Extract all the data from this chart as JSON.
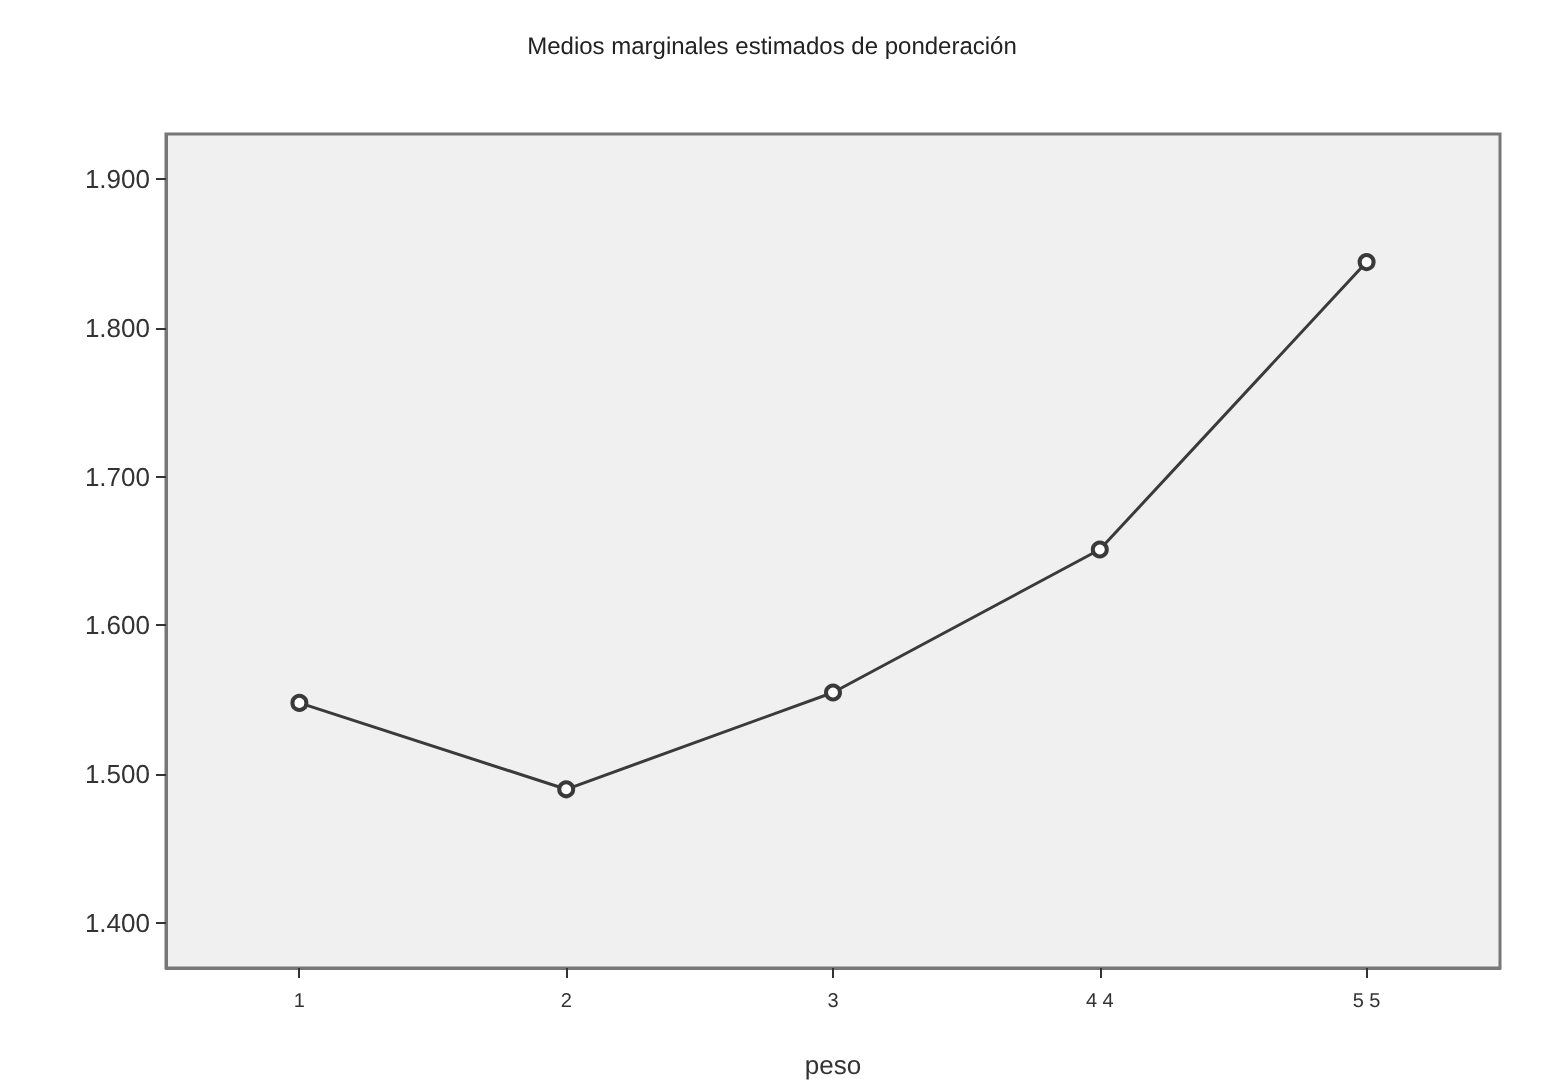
{
  "chart_data": {
    "type": "line",
    "title": "Medios marginales estimados de ponderación",
    "xlabel": "peso",
    "categories": [
      "1",
      "2",
      "3",
      "4 4",
      "5 5"
    ],
    "series": [
      {
        "color": "#3a3a3a",
        "values": [
          1548,
          1490,
          1555,
          1651,
          1844
        ]
      }
    ],
    "ylim": [
      1370,
      1930
    ],
    "yticks": [
      {
        "value": 1400,
        "label": "1.400"
      },
      {
        "value": 1500,
        "label": "1.500"
      },
      {
        "value": 1600,
        "label": "1.600"
      },
      {
        "value": 1700,
        "label": "1.700"
      },
      {
        "value": 1800,
        "label": "1.800"
      },
      {
        "value": 1900,
        "label": "1.900"
      }
    ],
    "grid": false,
    "marker": "circle",
    "line_style": "solid"
  }
}
